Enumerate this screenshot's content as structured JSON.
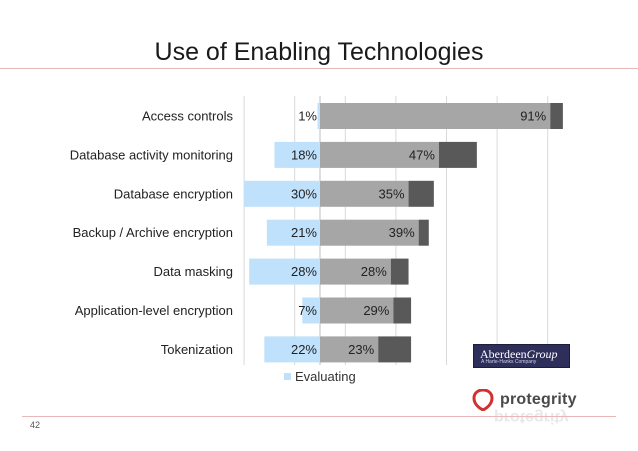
{
  "page": {
    "number": "42"
  },
  "branding": {
    "badge_name": "Aberdeen",
    "badge_name_italic": "Group",
    "badge_tagline": "A Harte-Hanks Company",
    "vendor": "protegrity",
    "colors": {
      "badge": "#2e2e5a",
      "logo_red": "#d32f2f"
    }
  },
  "chart_data": {
    "type": "bar",
    "orientation": "horizontal",
    "stacked": true,
    "title": "Use of Enabling Technologies",
    "categories": [
      "Access controls",
      "Database activity monitoring",
      "Database encryption",
      "Backup / Archive encryption",
      "Data masking",
      "Application-level encryption",
      "Tokenization"
    ],
    "series": [
      {
        "name": "Evaluating",
        "values": [
          1,
          18,
          30,
          21,
          28,
          7,
          22
        ],
        "direction": "left",
        "color": "#bfe1fb"
      },
      {
        "values": [
          91,
          47,
          35,
          39,
          28,
          29,
          23
        ],
        "direction": "right",
        "color": "#a6a6a6"
      },
      {
        "values": [
          5,
          15,
          10,
          4,
          7,
          7,
          13
        ],
        "direction": "right",
        "color": "#595959"
      }
    ],
    "legend": {
      "placement": "bottom",
      "entries": [
        "Evaluating"
      ]
    },
    "grid": true,
    "xlim": [
      -30,
      95
    ]
  }
}
